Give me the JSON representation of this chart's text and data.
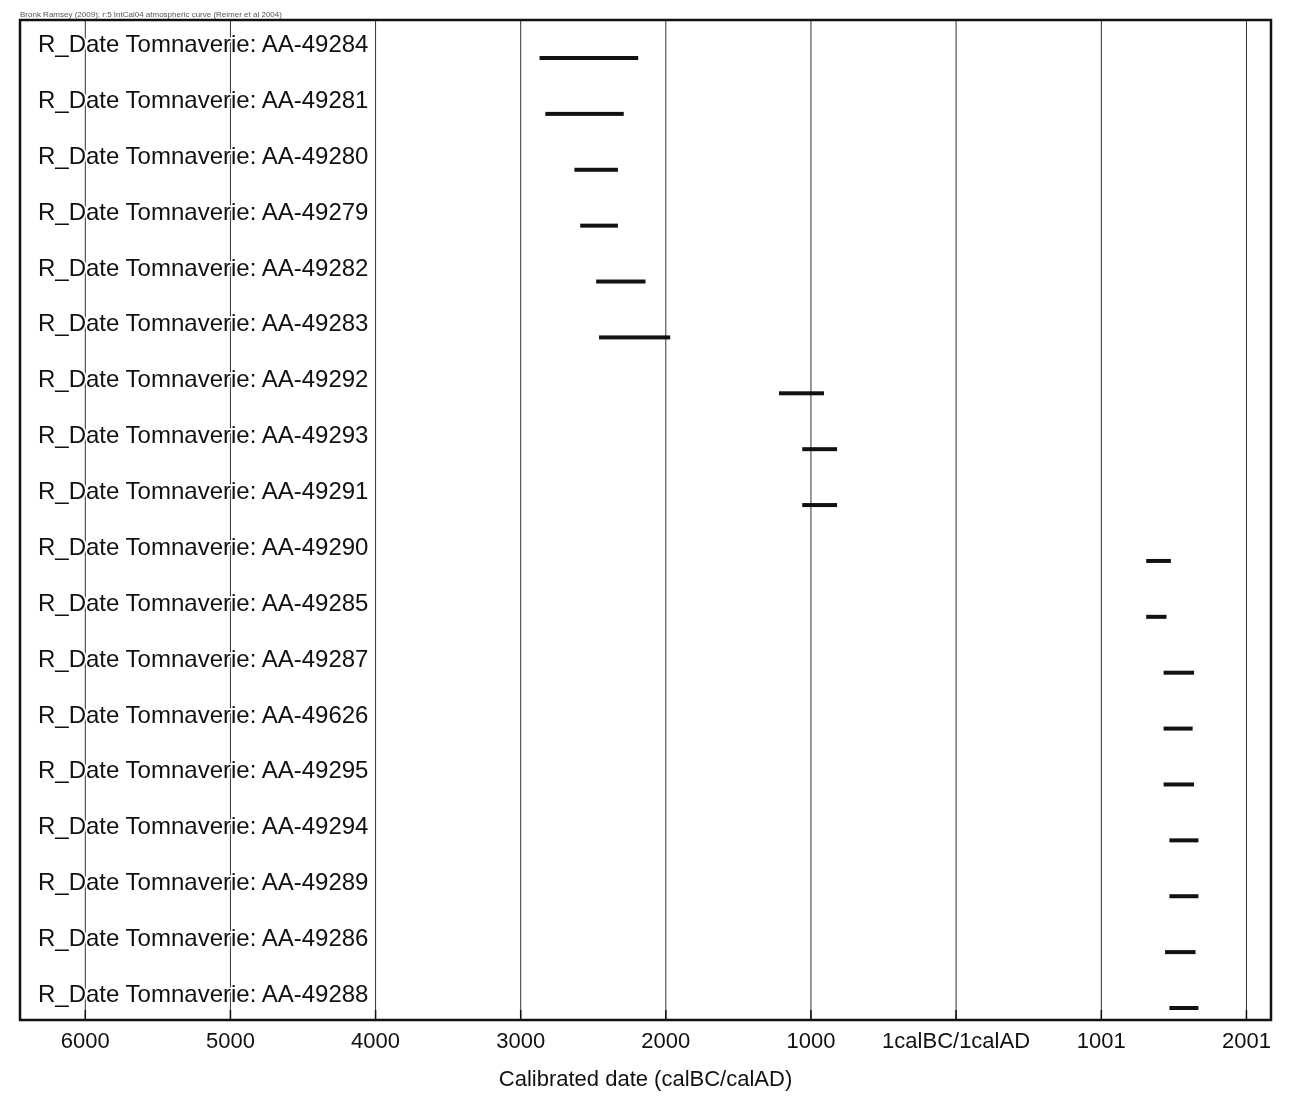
{
  "chart_data": {
    "type": "bar",
    "orientation": "horizontal",
    "xlabel": "Calibrated date (calBC/calAD)",
    "annotations": [
      "Bronk Ramsey (2009); r:5 IntCal04 atmospheric curve (Reimer et al 2004)"
    ],
    "categories": [
      "R_Date Tomnaverie: AA-49284",
      "R_Date Tomnaverie: AA-49281",
      "R_Date Tomnaverie: AA-49280",
      "R_Date Tomnaverie: AA-49279",
      "R_Date Tomnaverie: AA-49282",
      "R_Date Tomnaverie: AA-49283",
      "R_Date Tomnaverie: AA-49292",
      "R_Date Tomnaverie: AA-49293",
      "R_Date Tomnaverie: AA-49291",
      "R_Date Tomnaverie: AA-49290",
      "R_Date Tomnaverie: AA-49285",
      "R_Date Tomnaverie: AA-49287",
      "R_Date Tomnaverie: AA-49626",
      "R_Date Tomnaverie: AA-49295",
      "R_Date Tomnaverie: AA-49294",
      "R_Date Tomnaverie: AA-49289",
      "R_Date Tomnaverie: AA-49286",
      "R_Date Tomnaverie: AA-49288"
    ],
    "base": [
      -2870,
      -2830,
      -2630,
      -2590,
      -2480,
      -2460,
      -1220,
      -1060,
      -1060,
      1310,
      1310,
      1430,
      1430,
      1430,
      1470,
      1470,
      1440,
      1470
    ],
    "values": [
      680,
      540,
      300,
      260,
      340,
      490,
      310,
      240,
      240,
      170,
      140,
      210,
      200,
      210,
      200,
      200,
      210,
      200
    ],
    "color": "#111111",
    "xlim": [
      -6450,
      2170
    ],
    "xticks": [
      {
        "value": -6000,
        "label": "6000"
      },
      {
        "value": -5000,
        "label": "5000"
      },
      {
        "value": -4000,
        "label": "4000"
      },
      {
        "value": -3000,
        "label": "3000"
      },
      {
        "value": -2000,
        "label": "2000"
      },
      {
        "value": -1000,
        "label": "1000"
      },
      {
        "value": 0,
        "label": "1calBC/1calAD"
      },
      1001,
      2001
    ],
    "grid": "x"
  }
}
